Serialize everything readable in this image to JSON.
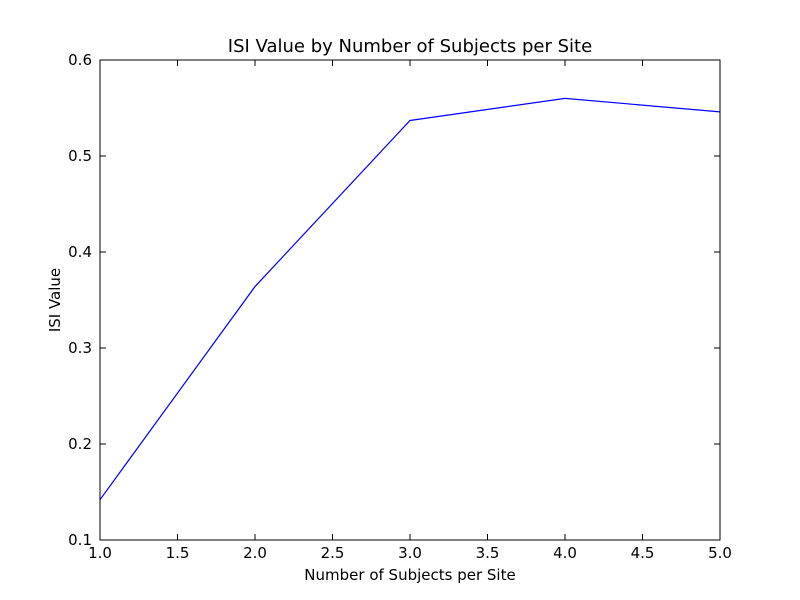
{
  "chart_data": {
    "type": "line",
    "title": "ISI Value by Number of Subjects per Site",
    "xlabel": "Number of Subjects per Site",
    "ylabel": "ISI Value",
    "xlim": [
      1.0,
      5.0
    ],
    "ylim": [
      0.1,
      0.6
    ],
    "xticks": [
      "1.0",
      "1.5",
      "2.0",
      "2.5",
      "3.0",
      "3.5",
      "4.0",
      "4.5",
      "5.0"
    ],
    "yticks": [
      "0.1",
      "0.2",
      "0.3",
      "0.4",
      "0.5",
      "0.6"
    ],
    "grid": false,
    "legend": "none",
    "series": [
      {
        "color": "#0000ff",
        "x": [
          1,
          2,
          3,
          4,
          5
        ],
        "y": [
          0.142,
          0.364,
          0.537,
          0.56,
          0.546
        ]
      }
    ]
  }
}
